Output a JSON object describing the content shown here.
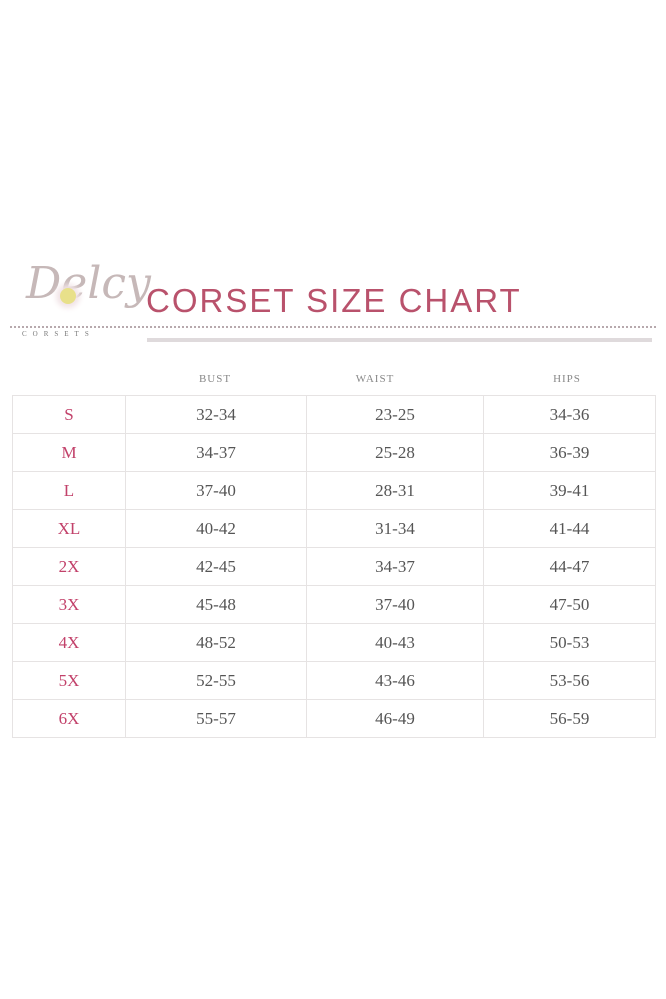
{
  "logo": {
    "script": "Delcy",
    "subtitle": "CORSETS"
  },
  "title": "CORSET SIZE CHART",
  "colors": {
    "title": "#b9526c",
    "size_label": "#c2416a",
    "text": "#555555",
    "grid": "#e6e3e3"
  },
  "table": {
    "headers": [
      "BUST",
      "WAIST",
      "HIPS"
    ],
    "rows": [
      {
        "size": "S",
        "bust": "32-34",
        "waist": "23-25",
        "hips": "34-36"
      },
      {
        "size": "M",
        "bust": "34-37",
        "waist": "25-28",
        "hips": "36-39"
      },
      {
        "size": "L",
        "bust": "37-40",
        "waist": "28-31",
        "hips": "39-41"
      },
      {
        "size": "XL",
        "bust": "40-42",
        "waist": "31-34",
        "hips": "41-44"
      },
      {
        "size": "2X",
        "bust": "42-45",
        "waist": "34-37",
        "hips": "44-47"
      },
      {
        "size": "3X",
        "bust": "45-48",
        "waist": "37-40",
        "hips": "47-50"
      },
      {
        "size": "4X",
        "bust": "48-52",
        "waist": "40-43",
        "hips": "50-53"
      },
      {
        "size": "5X",
        "bust": "52-55",
        "waist": "43-46",
        "hips": "53-56"
      },
      {
        "size": "6X",
        "bust": "55-57",
        "waist": "46-49",
        "hips": "56-59"
      }
    ]
  }
}
